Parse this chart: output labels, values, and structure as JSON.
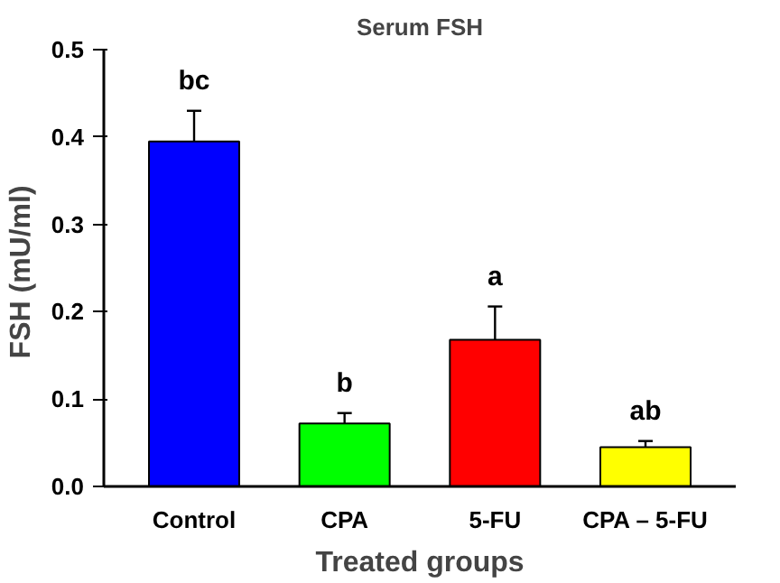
{
  "chart_data": {
    "type": "bar",
    "title": "Serum FSH",
    "xlabel": "Treated groups",
    "ylabel": "FSH  (mU/ml)",
    "categories": [
      "Control",
      "CPA",
      "5-FU",
      "CPA – 5-FU"
    ],
    "values": [
      0.395,
      0.072,
      0.168,
      0.045
    ],
    "errors": [
      0.035,
      0.012,
      0.038,
      0.007
    ],
    "colors": [
      "#0000ff",
      "#00ff00",
      "#ff0000",
      "#ffff00"
    ],
    "ylim": [
      0,
      0.5
    ],
    "yticks": [
      {
        "value": 0,
        "label": "0.0"
      },
      {
        "value": 0.1,
        "label": "0.1"
      },
      {
        "value": 0.2,
        "label": "0.2"
      },
      {
        "value": 0.3,
        "label": "0.3"
      },
      {
        "value": 0.4,
        "label": "0.4"
      },
      {
        "value": 0.5,
        "label": "0.5"
      }
    ],
    "annotations": [
      "bc",
      "b",
      "a",
      "ab"
    ],
    "grid": false
  }
}
